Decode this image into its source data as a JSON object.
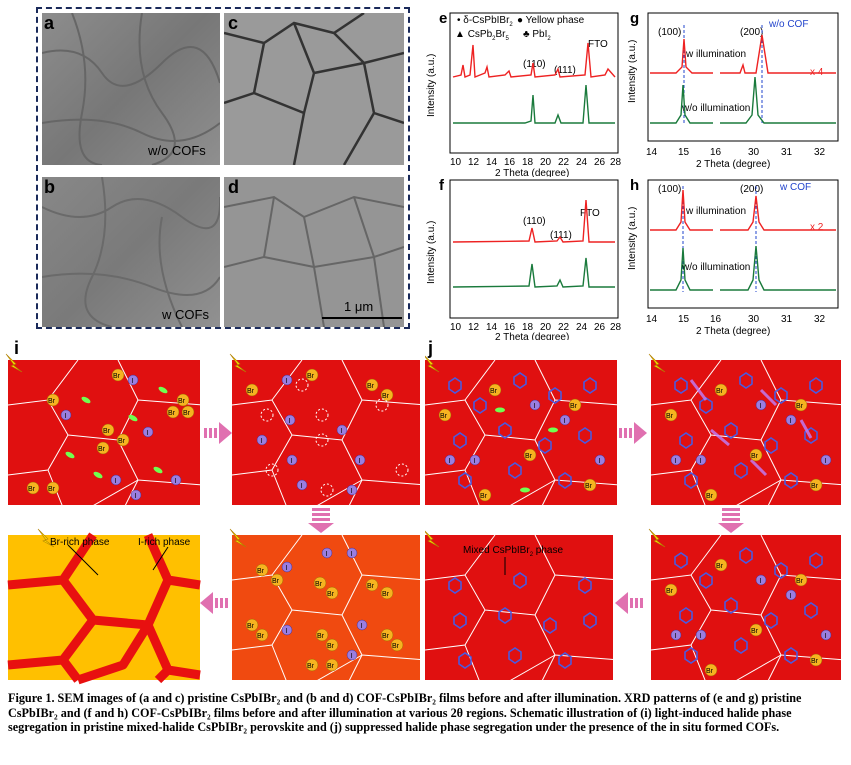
{
  "sem": {
    "a": "a",
    "b": "b",
    "c": "c",
    "d": "d",
    "wo_cofs": "w/o COFs",
    "w_cofs": "w COFs",
    "scale": "1 μm"
  },
  "xrd_e": {
    "label": "e",
    "legend1": "δ-CsPbIBr",
    "legend1_sub": "2",
    "legend2": "Yellow phase",
    "legend3": "CsPb",
    "legend3_sub1": "2",
    "legend3_mid": "Br",
    "legend3_sub2": "5",
    "legend4": "PbI",
    "legend4_sub": "2",
    "fto": "FTO",
    "peak110": "(110)",
    "peak111": "(111)",
    "ylabel": "Intensity (a.u.)",
    "xlabel": "2 Theta (degree)",
    "xticks": [
      "10",
      "12",
      "14",
      "16",
      "18",
      "20",
      "22",
      "24",
      "26",
      "28"
    ]
  },
  "xrd_f": {
    "label": "f",
    "fto": "FTO",
    "peak110": "(110)",
    "peak111": "(111)",
    "ylabel": "Intensity (a.u.)",
    "xlabel": "2 Theta (degree)",
    "xticks": [
      "10",
      "12",
      "14",
      "16",
      "18",
      "20",
      "22",
      "24",
      "26",
      "28"
    ]
  },
  "xrd_g": {
    "label": "g",
    "peak100": "(100)",
    "peak200": "(200)",
    "tag": "w/o COF",
    "w_illum": "w illumination",
    "wo_illum": "w/o illumination",
    "mult": "x 4",
    "ylabel": "Intensity (a.u.)",
    "xlabel": "2 Theta (degree)",
    "xticks": [
      "14",
      "15",
      "16",
      "30",
      "31",
      "32"
    ]
  },
  "xrd_h": {
    "label": "h",
    "peak100": "(100)",
    "peak200": "(200)",
    "tag": "w COF",
    "w_illum": "w illumination",
    "wo_illum": "w/o illumination",
    "mult": "x 2",
    "ylabel": "Intensity (a.u.)",
    "xlabel": "2 Theta (degree)",
    "xticks": [
      "14",
      "15",
      "16",
      "30",
      "31",
      "32"
    ]
  },
  "schematic": {
    "i": "i",
    "j": "j",
    "br_rich": "Br-rich phase",
    "i_rich": "I-rich phase",
    "mixed": "Mixed CsPbIBr",
    "mixed_sub": "2",
    "mixed_end": " phase",
    "br": "Br",
    "iodide": "I"
  },
  "caption": {
    "text": "Figure 1. SEM images of (a and c) pristine CsPbIBr₂ and (b and d) COF-CsPbIBr₂ films before and after illumination. XRD patterns of (e and g) pristine CsPbIBr₂ and (f and h) COF-CsPbIBr₂ films before and after illumination at various 2θ regions. Schematic illustration of (i) light-induced halide phase segregation in pristine mixed-halide CsPbIBr₂ perovskite and (j) suppressed halide phase segregation under the presence of the in situ formed COFs."
  },
  "colors": {
    "red_curve": "#ee2222",
    "green_curve": "#1a7a3c",
    "schem_red": "#e01010",
    "schem_orange": "#f04a10",
    "br_rich": "#ffc000",
    "i_rich": "#e81010"
  }
}
